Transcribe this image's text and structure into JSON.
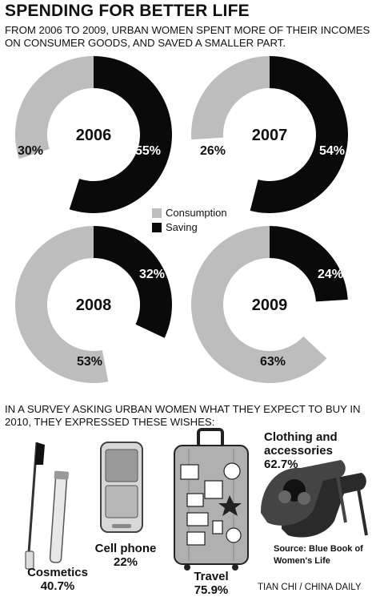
{
  "title": "SPENDING FOR BETTER LIFE",
  "subtitle": "FROM 2006 TO 2009, URBAN WOMEN SPENT MORE OF THEIR INCOMES ON CONSUMER GOODS, AND SAVED A SMALLER PART.",
  "legend": {
    "consumption": "Consumption",
    "saving": "Saving"
  },
  "colors": {
    "consumption": "#bdbdbd",
    "saving": "#0a0a0a"
  },
  "chart_data": [
    {
      "type": "pie",
      "year": "2006",
      "slices": [
        {
          "name": "Saving",
          "value": 55,
          "label": "55%"
        },
        {
          "name": "Consumption",
          "value": 30,
          "label": "30%"
        }
      ]
    },
    {
      "type": "pie",
      "year": "2007",
      "slices": [
        {
          "name": "Saving",
          "value": 54,
          "label": "54%"
        },
        {
          "name": "Consumption",
          "value": 26,
          "label": "26%"
        }
      ]
    },
    {
      "type": "pie",
      "year": "2008",
      "slices": [
        {
          "name": "Saving",
          "value": 32,
          "label": "32%"
        },
        {
          "name": "Consumption",
          "value": 53,
          "label": "53%"
        }
      ]
    },
    {
      "type": "pie",
      "year": "2009",
      "slices": [
        {
          "name": "Saving",
          "value": 24,
          "label": "24%"
        },
        {
          "name": "Consumption",
          "value": 63,
          "label": "63%"
        }
      ]
    }
  ],
  "survey": {
    "intro": "IN A SURVEY ASKING URBAN WOMEN WHAT THEY EXPECT TO BUY IN 2010, THEY EXPRESSED THESE WISHES:",
    "items": [
      {
        "label": "Cosmetics",
        "value": "40.7%",
        "icon": "mascara-icon"
      },
      {
        "label": "Cell phone",
        "value": "22%",
        "icon": "flip-phone-icon"
      },
      {
        "label": "Travel",
        "value": "75.9%",
        "icon": "suitcase-icon"
      },
      {
        "label": "Clothing and accessories",
        "value": "62.7%",
        "icon": "high-heels-icon"
      }
    ]
  },
  "source": "Source: Blue Book of Women's Life",
  "credit": "TIAN CHI / CHINA DAILY"
}
